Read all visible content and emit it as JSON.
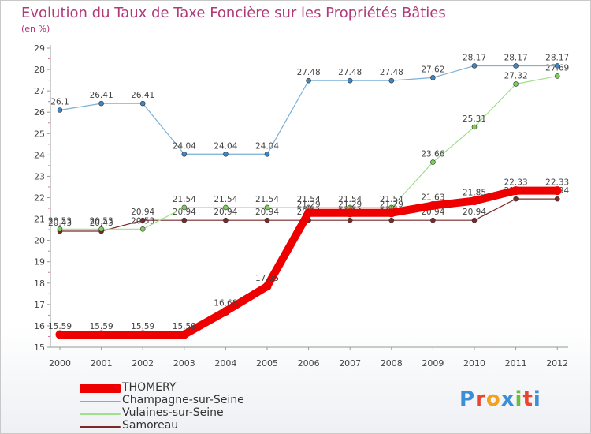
{
  "header": {
    "title": "Evolution du Taux de Taxe Foncière sur les Propriétés Bâties",
    "subtitle": "(en %)"
  },
  "brand": {
    "text": "Proxiti",
    "letters": [
      "P",
      "r",
      "o",
      "x",
      "i",
      "t",
      "i"
    ],
    "colors": [
      "#3a8fd6",
      "#e8462e",
      "#f2a21a",
      "#3a8fd6",
      "#6cbe3a",
      "#e8462e",
      "#3a8fd6"
    ]
  },
  "chart_data": {
    "type": "line",
    "title": "Evolution du Taux de Taxe Foncière sur les Propriétés Bâties",
    "ylabel": "(en %)",
    "xlabel": "",
    "x": [
      "2000",
      "2001",
      "2002",
      "2003",
      "2004",
      "2005",
      "2006",
      "2007",
      "2008",
      "2009",
      "2010",
      "2011",
      "2012"
    ],
    "ylim": [
      15,
      29
    ],
    "yticks": [
      15,
      16,
      17,
      18,
      19,
      20,
      21,
      22,
      23,
      24,
      25,
      26,
      27,
      28,
      29
    ],
    "grid": false,
    "legend_position": "bottom-left",
    "series": [
      {
        "name": "Samoreau",
        "color": "#7a2a2a",
        "width": 1.2,
        "values": [
          20.43,
          20.43,
          20.94,
          20.94,
          20.94,
          20.94,
          20.94,
          20.94,
          20.94,
          20.94,
          20.94,
          21.94,
          21.94
        ],
        "labels": [
          "20.43",
          "20.43",
          "20.94",
          "20.94",
          "20.94",
          "20.94",
          "20.94",
          "20.94",
          "20.94",
          "20.94",
          "20.94",
          "21.94",
          "21.94"
        ]
      },
      {
        "name": "Vulaines-sur-Seine",
        "color": "#9fe08a",
        "marker": "#7ccf5a",
        "width": 1.2,
        "values": [
          20.53,
          20.53,
          20.53,
          21.54,
          21.54,
          21.54,
          21.54,
          21.54,
          21.54,
          23.66,
          25.31,
          27.32,
          27.69
        ],
        "labels": [
          "20.53",
          "20.53",
          "20.53",
          "21.54",
          "21.54",
          "21.54",
          "21.54",
          "21.54",
          "21.54",
          "23.66",
          "25.31",
          "27.32",
          "27.69"
        ]
      },
      {
        "name": "Champagne-sur-Seine",
        "color": "#7ab0d8",
        "marker": "#3f86c2",
        "width": 1.2,
        "values": [
          26.1,
          26.41,
          26.41,
          24.04,
          24.04,
          24.04,
          27.48,
          27.48,
          27.48,
          27.62,
          28.17,
          28.17,
          28.17
        ],
        "labels": [
          "26.1",
          "26.41",
          "26.41",
          "24.04",
          "24.04",
          "24.04",
          "27.48",
          "27.48",
          "27.48",
          "27.62",
          "28.17",
          "28.17",
          "28.17"
        ]
      },
      {
        "name": "THOMERY",
        "color": "#ee0000",
        "width": 10,
        "values": [
          15.59,
          15.59,
          15.59,
          15.59,
          16.68,
          17.85,
          21.29,
          21.29,
          21.29,
          21.63,
          21.85,
          22.33,
          22.33
        ],
        "labels": [
          "15.59",
          "15.59",
          "15.59",
          "15.59",
          "16.68",
          "17.85",
          "21.29",
          "21.29",
          "21.29",
          "21.63",
          "21.85",
          "22.33",
          "22.33"
        ]
      }
    ],
    "legend": [
      "THOMERY",
      "Champagne-sur-Seine",
      "Vulaines-sur-Seine",
      "Samoreau"
    ]
  }
}
